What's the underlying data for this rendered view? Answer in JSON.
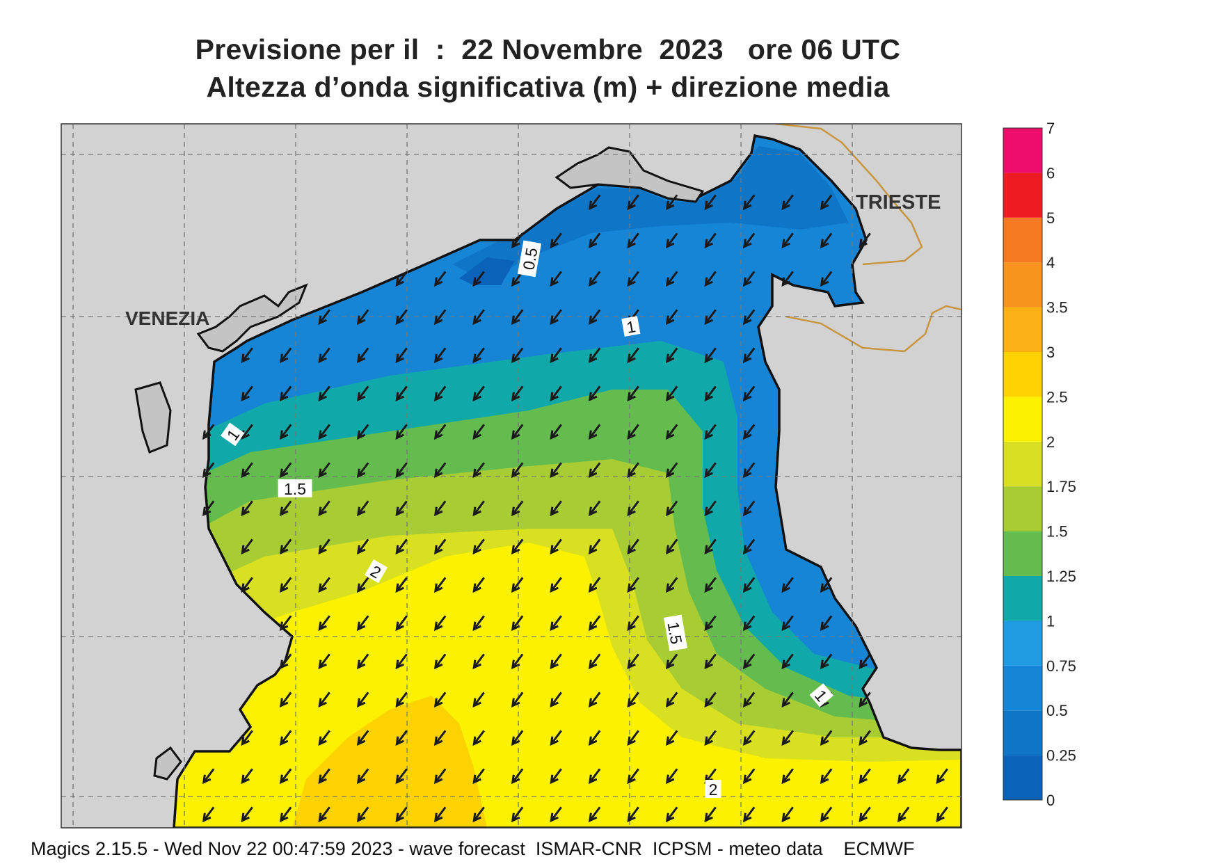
{
  "title": {
    "line1": "Previsione per il  :  22 Novembre  2023   ore 06 UTC",
    "line2": "Altezza d’onda significativa (m) + direzione media"
  },
  "cities": [
    {
      "name": "VENEZIA"
    },
    {
      "name": "TRIESTE"
    }
  ],
  "contour_labels": [
    "0.5",
    "1",
    "1",
    "1.5",
    "2",
    "1.5",
    "1",
    "2"
  ],
  "colorbar": {
    "unit": "m",
    "levels": [
      "0",
      "0.25",
      "0.5",
      "0.75",
      "1",
      "1.25",
      "1.5",
      "1.75",
      "2",
      "2.5",
      "3",
      "3.5",
      "4",
      "5",
      "6",
      "7"
    ],
    "colors": [
      "#0a63b8",
      "#0f76c7",
      "#1685d6",
      "#1f9be3",
      "#10a8a8",
      "#64bc4e",
      "#a8cc34",
      "#d9e021",
      "#fcf200",
      "#fcd200",
      "#fbb016",
      "#f7941d",
      "#f47920",
      "#ed1c24",
      "#ec0e6a"
    ]
  },
  "wave_direction": "south-west",
  "footer": "Magics 2.15.5 - Wed Nov 22 00:47:59 2023 - wave forecast  ISMAR-CNR  ICPSM - meteo data    ECMWF",
  "colors": {
    "land": "#d2d2d2",
    "frame": "#333333",
    "border": "#c8963e"
  }
}
